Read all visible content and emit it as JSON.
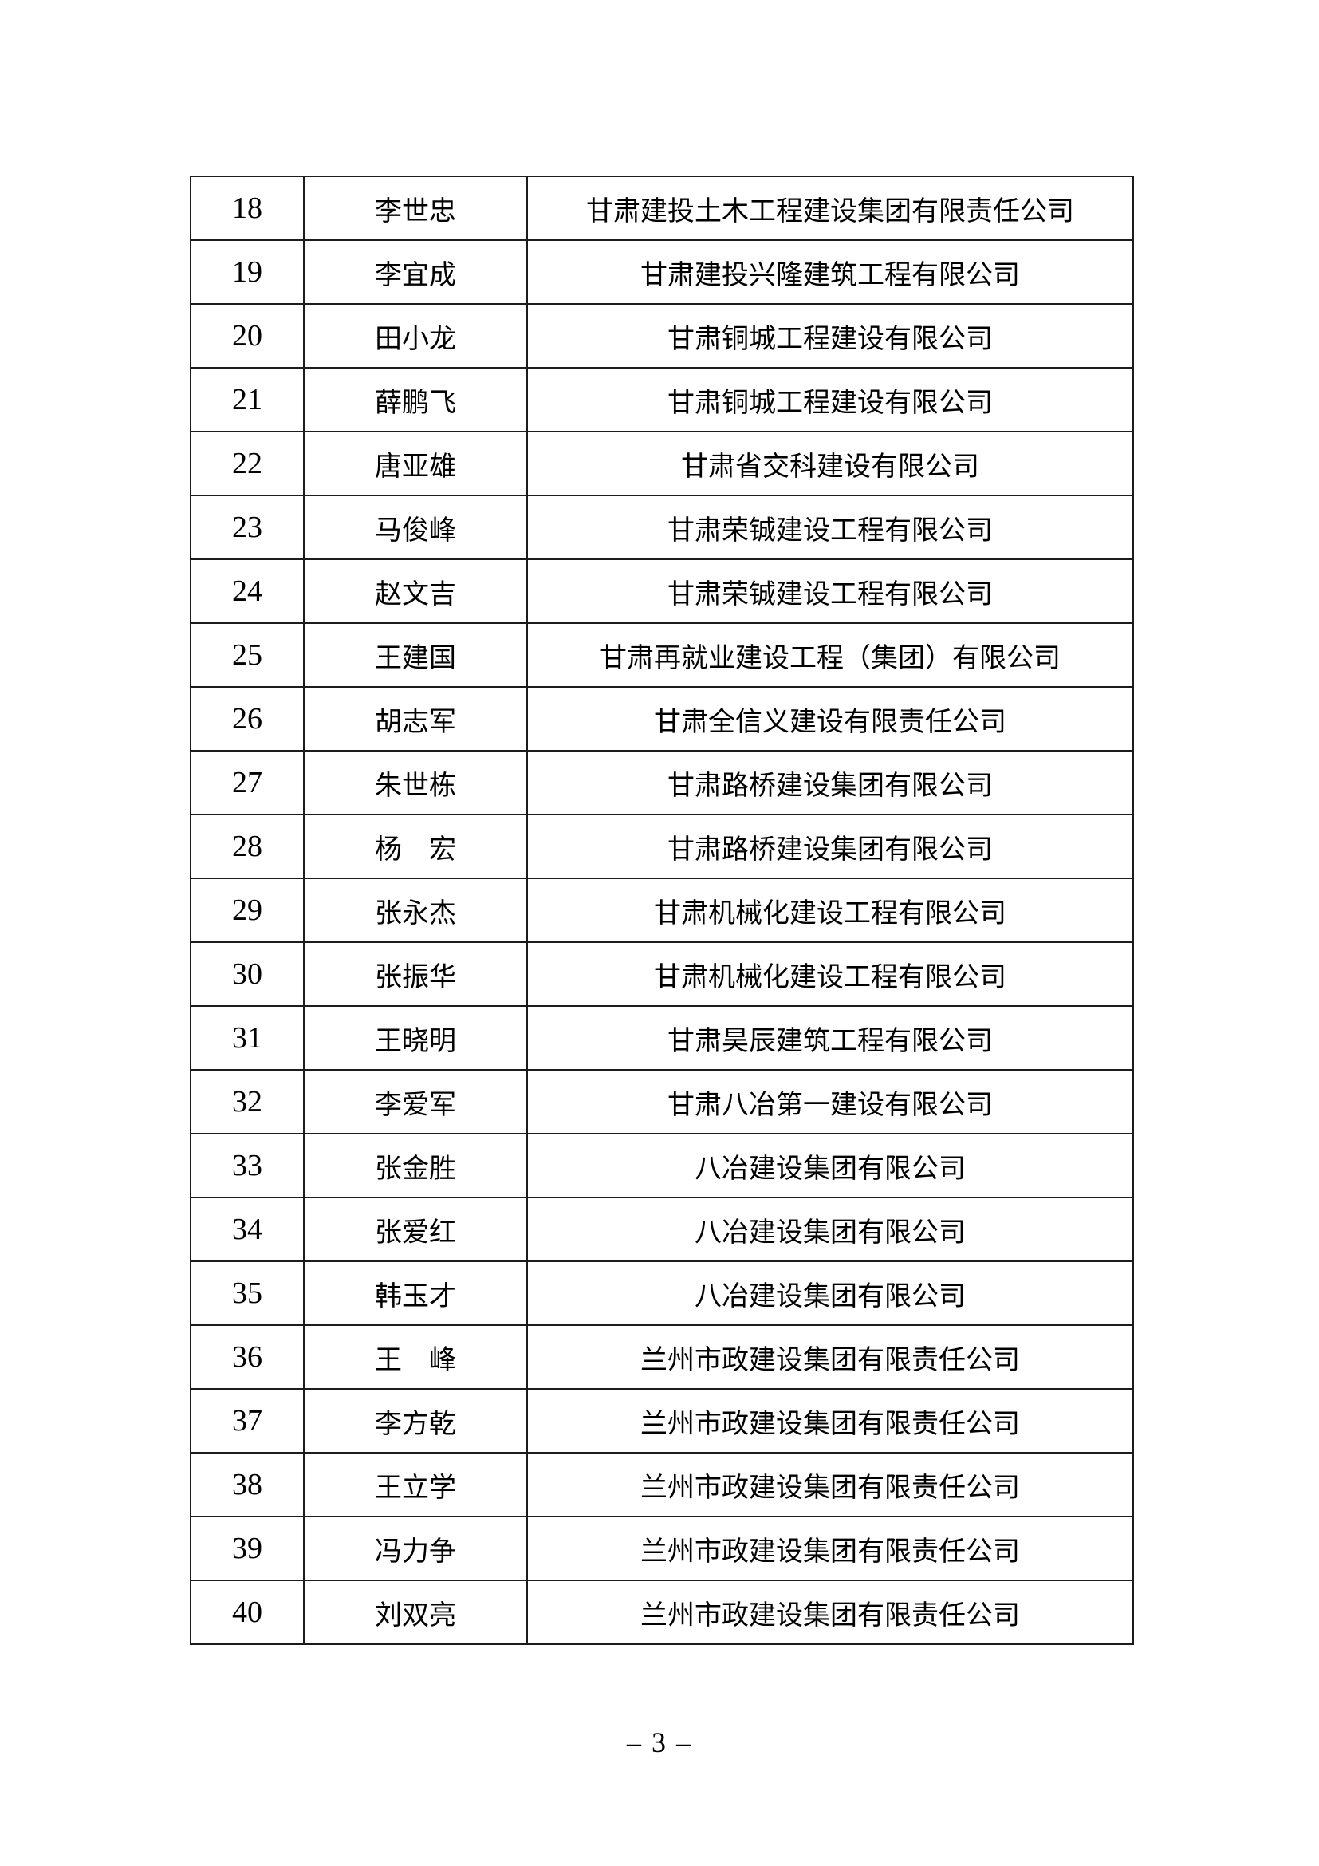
{
  "footer": {
    "page_label": "– 3 –"
  },
  "table": {
    "rows": [
      {
        "no": "18",
        "name": "李世忠",
        "company": "甘肃建投土木工程建设集团有限责任公司"
      },
      {
        "no": "19",
        "name": "李宜成",
        "company": "甘肃建投兴隆建筑工程有限公司"
      },
      {
        "no": "20",
        "name": "田小龙",
        "company": "甘肃铜城工程建设有限公司"
      },
      {
        "no": "21",
        "name": "薛鹏飞",
        "company": "甘肃铜城工程建设有限公司"
      },
      {
        "no": "22",
        "name": "唐亚雄",
        "company": "甘肃省交科建设有限公司"
      },
      {
        "no": "23",
        "name": "马俊峰",
        "company": "甘肃荣铖建设工程有限公司"
      },
      {
        "no": "24",
        "name": "赵文吉",
        "company": "甘肃荣铖建设工程有限公司"
      },
      {
        "no": "25",
        "name": "王建国",
        "company": "甘肃再就业建设工程（集团）有限公司"
      },
      {
        "no": "26",
        "name": "胡志军",
        "company": "甘肃全信义建设有限责任公司"
      },
      {
        "no": "27",
        "name": "朱世栋",
        "company": "甘肃路桥建设集团有限公司"
      },
      {
        "no": "28",
        "name": "杨　宏",
        "company": "甘肃路桥建设集团有限公司"
      },
      {
        "no": "29",
        "name": "张永杰",
        "company": "甘肃机械化建设工程有限公司"
      },
      {
        "no": "30",
        "name": "张振华",
        "company": "甘肃机械化建设工程有限公司"
      },
      {
        "no": "31",
        "name": "王晓明",
        "company": "甘肃昊辰建筑工程有限公司"
      },
      {
        "no": "32",
        "name": "李爱军",
        "company": "甘肃八冶第一建设有限公司"
      },
      {
        "no": "33",
        "name": "张金胜",
        "company": "八冶建设集团有限公司"
      },
      {
        "no": "34",
        "name": "张爱红",
        "company": "八冶建设集团有限公司"
      },
      {
        "no": "35",
        "name": "韩玉才",
        "company": "八冶建设集团有限公司"
      },
      {
        "no": "36",
        "name": "王　峰",
        "company": "兰州市政建设集团有限责任公司"
      },
      {
        "no": "37",
        "name": "李方乾",
        "company": "兰州市政建设集团有限责任公司"
      },
      {
        "no": "38",
        "name": "王立学",
        "company": "兰州市政建设集团有限责任公司"
      },
      {
        "no": "39",
        "name": "冯力争",
        "company": "兰州市政建设集团有限责任公司"
      },
      {
        "no": "40",
        "name": "刘双亮",
        "company": "兰州市政建设集团有限责任公司"
      }
    ]
  }
}
